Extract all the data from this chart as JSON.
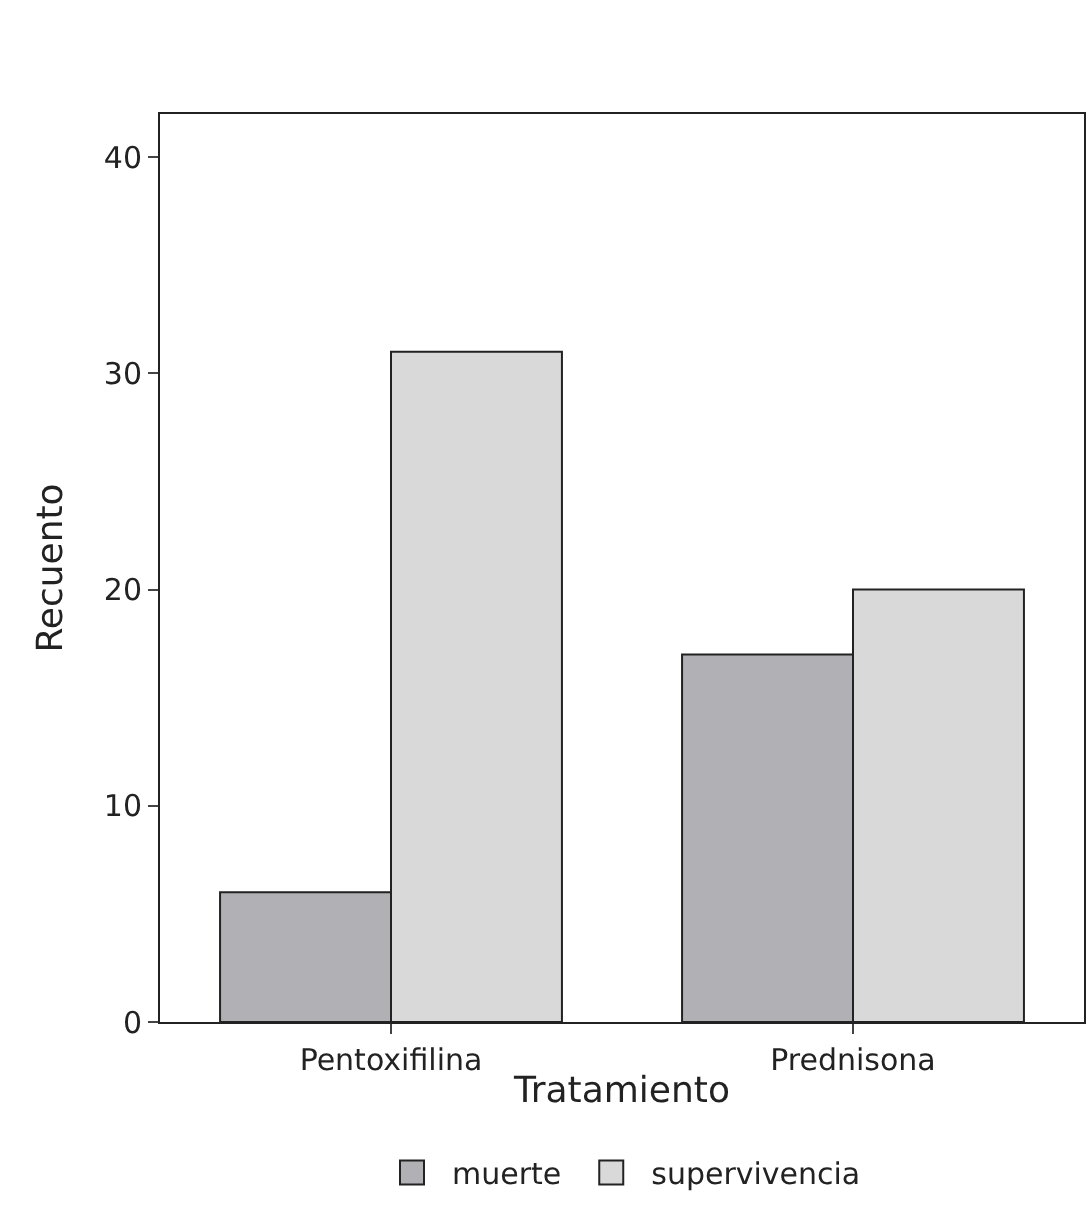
{
  "chart_data": {
    "type": "bar",
    "xlabel": "Tratamiento",
    "ylabel": "Recuento",
    "categories": [
      "Pentoxifilina",
      "Prednisona"
    ],
    "series": [
      {
        "name": "muerte",
        "color": "#b1b1b5",
        "values": [
          6,
          17
        ]
      },
      {
        "name": "supervivencia",
        "color": "#d9d9da",
        "values": [
          31,
          20
        ]
      }
    ],
    "ylim": [
      0,
      42
    ],
    "yticks": [
      0,
      10,
      20,
      30,
      40
    ],
    "legend": "bottom"
  }
}
